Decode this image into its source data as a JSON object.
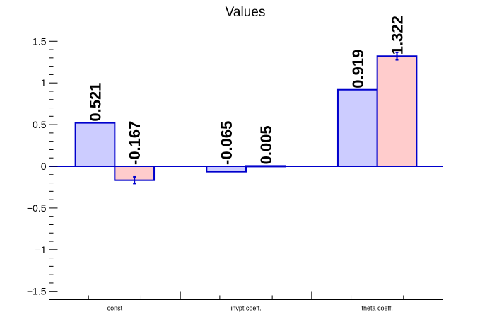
{
  "chart_data": {
    "type": "bar",
    "title": "Values",
    "xlabel": "",
    "ylabel": "",
    "categories": [
      "const",
      "invpt coeff.",
      "theta coeff."
    ],
    "ylim": [
      -1.6,
      1.6
    ],
    "y_ticks": [
      "1.5",
      "1",
      "0.5",
      "0",
      "−0.5",
      "−1",
      "−1.5"
    ],
    "y_tick_values": [
      1.5,
      1,
      0.5,
      0,
      -0.5,
      -1,
      -1.5
    ],
    "grid": false,
    "series": [
      {
        "values": [
          0.521,
          -0.065,
          0.919
        ],
        "labels": [
          "0.521",
          "-0.065",
          "0.919"
        ],
        "errors": [
          0,
          0,
          0
        ],
        "fill": "#ccccff",
        "stroke": "#0000cc"
      },
      {
        "values": [
          -0.167,
          0.005,
          1.322
        ],
        "labels": [
          "-0.167",
          "0.005",
          "1.322"
        ],
        "errors": [
          0.04,
          0,
          0.045
        ],
        "fill": "#ffcccc",
        "stroke": "#0000cc"
      }
    ]
  }
}
